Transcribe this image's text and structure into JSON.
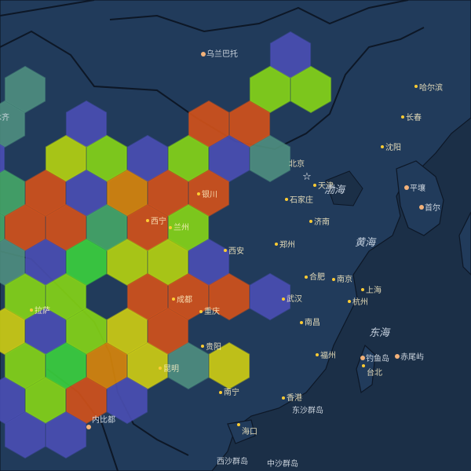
{
  "map": {
    "colors": {
      "ocean": "#1b2f47",
      "land": "#213b5b",
      "border": "#0d1726",
      "label": "#d6dde6",
      "city_dot_light": "#f3b27a",
      "city_dot_hex": "#ffcc33",
      "capital_star": "#ffffff"
    },
    "bins": {
      "blue": "#4a4fb4",
      "teal": "#4f8f80",
      "green_teal": "#45a767",
      "green": "#3bd13d",
      "lime": "#86d616",
      "yellow_green": "#b6d40f",
      "yellow": "#cfce12",
      "orange": "#d9860a",
      "red_orange": "#d4521a"
    },
    "hexbins": [
      {
        "col": 7,
        "row": 0,
        "bin": "blue"
      },
      {
        "col": 6,
        "row": 1,
        "bin": "lime"
      },
      {
        "col": 7,
        "row": 1,
        "bin": "lime"
      },
      {
        "col": 0,
        "row": 1,
        "bin": "teal"
      },
      {
        "col": 0,
        "row": 2,
        "bin": "teal"
      },
      {
        "col": 2,
        "row": 2,
        "bin": "blue"
      },
      {
        "col": 5,
        "row": 2,
        "bin": "red_orange"
      },
      {
        "col": 6,
        "row": 2,
        "bin": "red_orange"
      },
      {
        "col": -1,
        "row": 3,
        "bin": "blue"
      },
      {
        "col": 1,
        "row": 3,
        "bin": "yellow_green"
      },
      {
        "col": 2,
        "row": 3,
        "bin": "lime"
      },
      {
        "col": 3,
        "row": 3,
        "bin": "blue"
      },
      {
        "col": 4,
        "row": 3,
        "bin": "lime"
      },
      {
        "col": 5,
        "row": 3,
        "bin": "blue"
      },
      {
        "col": 6,
        "row": 3,
        "bin": "teal"
      },
      {
        "col": 0,
        "row": 4,
        "bin": "green_teal"
      },
      {
        "col": 1,
        "row": 4,
        "bin": "red_orange"
      },
      {
        "col": 2,
        "row": 4,
        "bin": "blue"
      },
      {
        "col": 3,
        "row": 4,
        "bin": "orange"
      },
      {
        "col": 4,
        "row": 4,
        "bin": "red_orange"
      },
      {
        "col": 5,
        "row": 4,
        "bin": "red_orange"
      },
      {
        "col": -1,
        "row": 5,
        "bin": "green_teal"
      },
      {
        "col": 0,
        "row": 5,
        "bin": "red_orange"
      },
      {
        "col": 1,
        "row": 5,
        "bin": "red_orange"
      },
      {
        "col": 2,
        "row": 5,
        "bin": "green_teal"
      },
      {
        "col": 3,
        "row": 5,
        "bin": "red_orange"
      },
      {
        "col": 4,
        "row": 5,
        "bin": "lime"
      },
      {
        "col": -1,
        "row": 6,
        "bin": "blue"
      },
      {
        "col": 0,
        "row": 6,
        "bin": "teal"
      },
      {
        "col": 1,
        "row": 6,
        "bin": "blue"
      },
      {
        "col": 2,
        "row": 6,
        "bin": "green"
      },
      {
        "col": 3,
        "row": 6,
        "bin": "yellow_green"
      },
      {
        "col": 4,
        "row": 6,
        "bin": "yellow_green"
      },
      {
        "col": 5,
        "row": 6,
        "bin": "blue"
      },
      {
        "col": -3,
        "row": 7,
        "bin": "teal"
      },
      {
        "col": -2,
        "row": 7,
        "bin": "yellow_green"
      },
      {
        "col": 0,
        "row": 7,
        "bin": "lime"
      },
      {
        "col": 1,
        "row": 7,
        "bin": "lime"
      },
      {
        "col": 3,
        "row": 7,
        "bin": "red_orange"
      },
      {
        "col": 4,
        "row": 7,
        "bin": "red_orange"
      },
      {
        "col": 5,
        "row": 7,
        "bin": "red_orange"
      },
      {
        "col": 6,
        "row": 7,
        "bin": "blue"
      },
      {
        "col": -3,
        "row": 8,
        "bin": "blue"
      },
      {
        "col": -1,
        "row": 8,
        "bin": "blue"
      },
      {
        "col": 0,
        "row": 8,
        "bin": "yellow"
      },
      {
        "col": 1,
        "row": 8,
        "bin": "blue"
      },
      {
        "col": 2,
        "row": 8,
        "bin": "lime"
      },
      {
        "col": 3,
        "row": 8,
        "bin": "yellow"
      },
      {
        "col": 4,
        "row": 8,
        "bin": "red_orange"
      },
      {
        "col": 0,
        "row": 9,
        "bin": "lime"
      },
      {
        "col": 1,
        "row": 9,
        "bin": "green"
      },
      {
        "col": 2,
        "row": 9,
        "bin": "orange"
      },
      {
        "col": 3,
        "row": 9,
        "bin": "yellow"
      },
      {
        "col": 4,
        "row": 9,
        "bin": "teal"
      },
      {
        "col": 5,
        "row": 9,
        "bin": "yellow"
      },
      {
        "col": -1,
        "row": 10,
        "bin": "blue"
      },
      {
        "col": 0,
        "row": 10,
        "bin": "blue"
      },
      {
        "col": 1,
        "row": 10,
        "bin": "lime"
      },
      {
        "col": 2,
        "row": 10,
        "bin": "red_orange"
      },
      {
        "col": 3,
        "row": 10,
        "bin": "blue"
      },
      {
        "col": 0,
        "row": 11,
        "bin": "blue"
      },
      {
        "col": 1,
        "row": 11,
        "bin": "blue"
      }
    ],
    "labels": [
      {
        "text": "乌兰巴托",
        "kind": "place",
        "dot": "light"
      },
      {
        "text": "乌鲁木齐",
        "kind": "place",
        "dot": "none"
      },
      {
        "text": "哈尔滨",
        "kind": "city",
        "dot": "hex"
      },
      {
        "text": "长春",
        "kind": "city",
        "dot": "hex"
      },
      {
        "text": "沈阳",
        "kind": "city",
        "dot": "hex"
      },
      {
        "text": "北京",
        "kind": "city",
        "dot": "none"
      },
      {
        "text": "天津",
        "kind": "city",
        "dot": "hex"
      },
      {
        "text": "石家庄",
        "kind": "city",
        "dot": "hex"
      },
      {
        "text": "渤海",
        "kind": "sea",
        "dot": "none"
      },
      {
        "text": "平壤",
        "kind": "place",
        "dot": "light"
      },
      {
        "text": "首尔",
        "kind": "place",
        "dot": "light"
      },
      {
        "text": "银川",
        "kind": "city",
        "dot": "hex"
      },
      {
        "text": "西宁",
        "kind": "city",
        "dot": "hex"
      },
      {
        "text": "兰州",
        "kind": "city",
        "dot": "hex"
      },
      {
        "text": "济南",
        "kind": "city",
        "dot": "hex"
      },
      {
        "text": "黄海",
        "kind": "sea",
        "dot": "none"
      },
      {
        "text": "郑州",
        "kind": "city",
        "dot": "hex"
      },
      {
        "text": "西安",
        "kind": "city",
        "dot": "hex"
      },
      {
        "text": "合肥",
        "kind": "city",
        "dot": "hex"
      },
      {
        "text": "南京",
        "kind": "city",
        "dot": "hex"
      },
      {
        "text": "上海",
        "kind": "city",
        "dot": "hex"
      },
      {
        "text": "成都",
        "kind": "city",
        "dot": "hex"
      },
      {
        "text": "武汉",
        "kind": "city",
        "dot": "hex"
      },
      {
        "text": "杭州",
        "kind": "city",
        "dot": "hex"
      },
      {
        "text": "拉萨",
        "kind": "city",
        "dot": "hex"
      },
      {
        "text": "重庆",
        "kind": "city",
        "dot": "hex"
      },
      {
        "text": "南昌",
        "kind": "city",
        "dot": "hex"
      },
      {
        "text": "东海",
        "kind": "sea",
        "dot": "none"
      },
      {
        "text": "贵阳",
        "kind": "city",
        "dot": "hex"
      },
      {
        "text": "福州",
        "kind": "city",
        "dot": "hex"
      },
      {
        "text": "钓鱼岛",
        "kind": "place",
        "dot": "light"
      },
      {
        "text": "赤尾屿",
        "kind": "place",
        "dot": "light"
      },
      {
        "text": "昆明",
        "kind": "city",
        "dot": "hex"
      },
      {
        "text": "台北",
        "kind": "city",
        "dot": "hex"
      },
      {
        "text": "南宁",
        "kind": "city",
        "dot": "hex"
      },
      {
        "text": "香港",
        "kind": "city",
        "dot": "hex"
      },
      {
        "text": "东沙群岛",
        "kind": "place",
        "dot": "none"
      },
      {
        "text": "内比都",
        "kind": "place",
        "dot": "light"
      },
      {
        "text": "海口",
        "kind": "city",
        "dot": "hex"
      },
      {
        "text": "西沙群岛",
        "kind": "place",
        "dot": "none"
      },
      {
        "text": "中沙群岛",
        "kind": "place",
        "dot": "none"
      }
    ]
  }
}
